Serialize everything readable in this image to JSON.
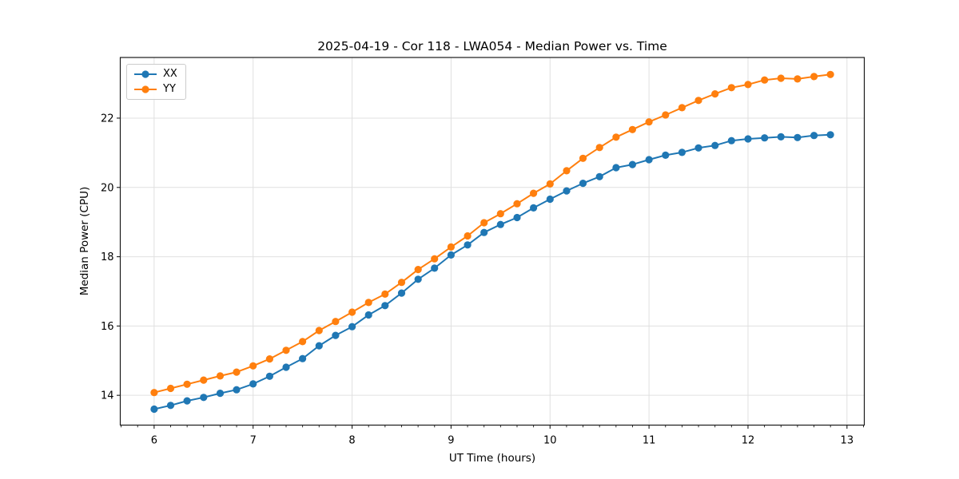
{
  "chart_data": {
    "type": "line",
    "title": "2025-04-19 - Cor 118 - LWA054 - Median Power vs. Time",
    "xlabel": "UT Time (hours)",
    "ylabel": "Median Power (CPU)",
    "x": [
      6.0,
      6.167,
      6.333,
      6.5,
      6.667,
      6.833,
      7.0,
      7.167,
      7.333,
      7.5,
      7.667,
      7.833,
      8.0,
      8.167,
      8.333,
      8.5,
      8.667,
      8.833,
      9.0,
      9.167,
      9.333,
      9.5,
      9.667,
      9.833,
      10.0,
      10.167,
      10.333,
      10.5,
      10.667,
      10.833,
      11.0,
      11.167,
      11.333,
      11.5,
      11.667,
      11.833,
      12.0,
      12.167,
      12.333,
      12.5,
      12.667,
      12.833
    ],
    "series": [
      {
        "name": "XX",
        "color": "#1f77b4",
        "values": [
          13.6,
          13.71,
          13.84,
          13.94,
          14.06,
          14.16,
          14.33,
          14.55,
          14.81,
          15.06,
          15.43,
          15.73,
          15.98,
          16.32,
          16.59,
          16.95,
          17.35,
          17.67,
          18.05,
          18.34,
          18.7,
          18.93,
          19.13,
          19.41,
          19.66,
          19.9,
          20.12,
          20.31,
          20.57,
          20.66,
          20.8,
          20.93,
          21.01,
          21.14,
          21.21,
          21.35,
          21.4,
          21.43,
          21.46,
          21.44,
          21.5,
          21.52
        ]
      },
      {
        "name": "YY",
        "color": "#ff7f0e",
        "values": [
          14.08,
          14.2,
          14.32,
          14.44,
          14.56,
          14.67,
          14.85,
          15.05,
          15.3,
          15.55,
          15.87,
          16.13,
          16.4,
          16.68,
          16.92,
          17.26,
          17.63,
          17.94,
          18.28,
          18.6,
          18.98,
          19.24,
          19.53,
          19.83,
          20.1,
          20.48,
          20.84,
          21.15,
          21.45,
          21.67,
          21.89,
          22.09,
          22.3,
          22.51,
          22.7,
          22.88,
          22.97,
          23.1,
          23.15,
          23.13,
          23.2,
          23.26
        ]
      }
    ],
    "xlim": [
      5.658,
      13.175
    ],
    "ylim": [
      13.14,
      23.75
    ],
    "xticks": [
      6,
      7,
      8,
      9,
      10,
      11,
      12,
      13
    ],
    "yticks": [
      14,
      16,
      18,
      20,
      22
    ],
    "x_minor_step": 0.1666667,
    "grid": true,
    "legend_position": "upper left",
    "marker": "circle",
    "colors": {
      "grid": "#e0e0e0",
      "spine": "#1a1a1a",
      "text": "#000000",
      "background": "#ffffff"
    }
  }
}
